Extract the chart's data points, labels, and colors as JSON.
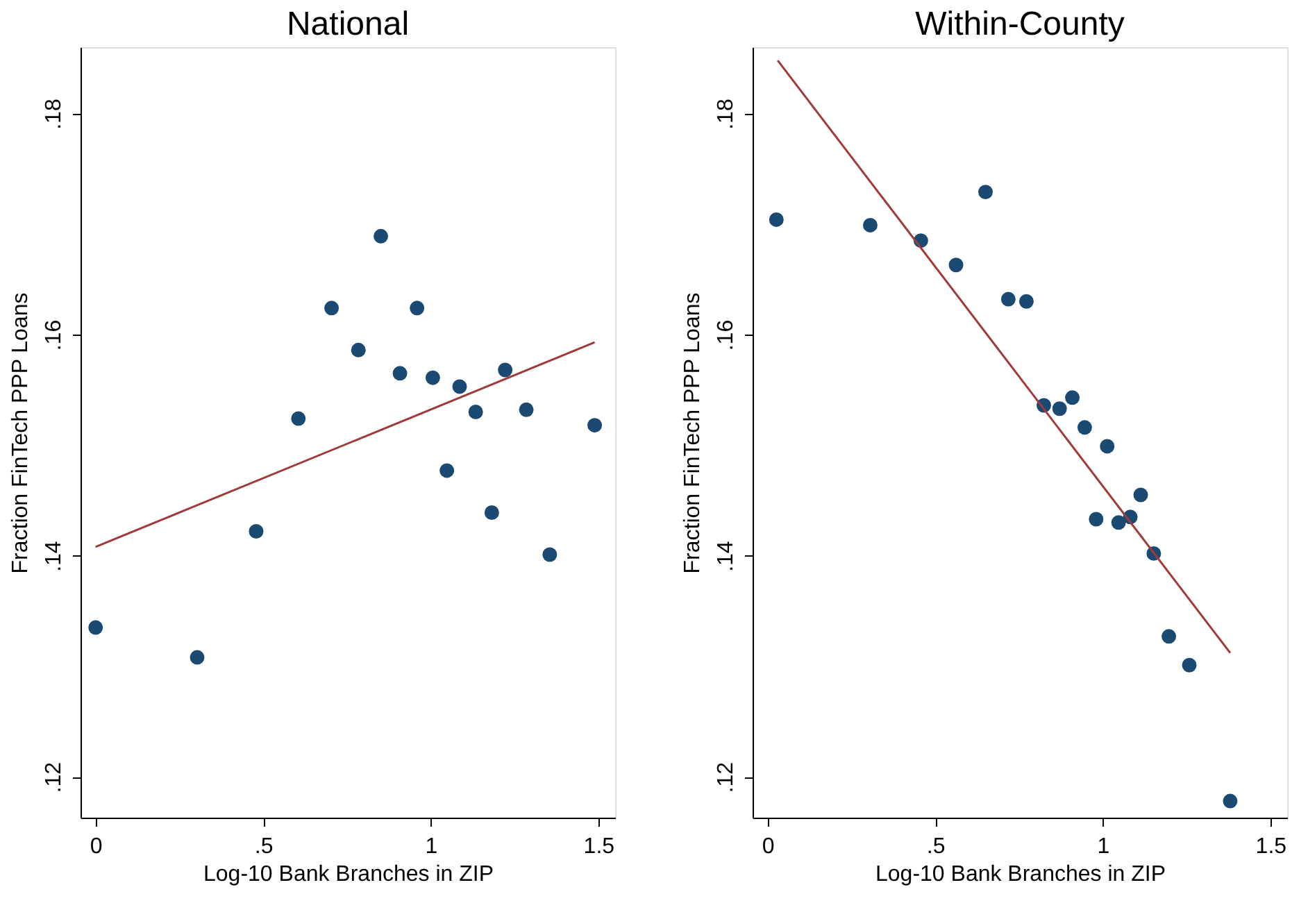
{
  "chart_data": [
    {
      "type": "scatter",
      "title": "National",
      "xlabel": "Log-10 Bank Branches in ZIP",
      "ylabel": "Fraction FinTech PPP Loans",
      "xlim": [
        -0.045,
        1.55
      ],
      "xticks": [
        0,
        {
          "value": 0.5,
          "label": ".5"
        },
        1,
        1.5
      ],
      "ylim": [
        0.1163,
        0.186
      ],
      "yticks": [
        {
          "value": 0.12,
          "label": ".12"
        },
        {
          "value": 0.14,
          "label": ".14"
        },
        {
          "value": 0.16,
          "label": ".16"
        },
        {
          "value": 0.18,
          "label": ".18"
        }
      ],
      "grid": false,
      "series": [
        {
          "marker": "circle",
          "color": "#1a4a72",
          "x": [
            0.0,
            0.303,
            0.479,
            0.605,
            0.704,
            0.784,
            0.851,
            0.908,
            0.959,
            1.006,
            1.048,
            1.086,
            1.134,
            1.182,
            1.222,
            1.285,
            1.355,
            1.489
          ],
          "values": [
            0.1335,
            0.1308,
            0.1422,
            0.1524,
            0.1624,
            0.1586,
            0.1689,
            0.1565,
            0.1624,
            0.1561,
            0.1477,
            0.1553,
            0.153,
            0.1439,
            0.1568,
            0.1532,
            0.1401,
            0.1518
          ]
        },
        {
          "type": "line",
          "color": "#a03a3a",
          "x": [
            0.0,
            1.489
          ],
          "values": [
            0.1408,
            0.1593
          ]
        }
      ]
    },
    {
      "type": "scatter",
      "title": "Within-County",
      "xlabel": "Log-10 Bank Branches in ZIP",
      "ylabel": "Fraction FinTech PPP Loans",
      "xlim": [
        -0.045,
        1.55
      ],
      "xticks": [
        0,
        {
          "value": 0.5,
          "label": ".5"
        },
        1,
        1.5
      ],
      "ylim": [
        0.1163,
        0.186
      ],
      "yticks": [
        {
          "value": 0.12,
          "label": ".12"
        },
        {
          "value": 0.14,
          "label": ".14"
        },
        {
          "value": 0.16,
          "label": ".16"
        },
        {
          "value": 0.18,
          "label": ".18"
        }
      ],
      "grid": false,
      "series": [
        {
          "marker": "circle",
          "color": "#1a4a72",
          "x": [
            0.026,
            0.306,
            0.457,
            0.562,
            0.65,
            0.718,
            0.772,
            0.824,
            0.871,
            0.909,
            0.946,
            1.013,
            0.98,
            1.047,
            1.082,
            1.113,
            1.152,
            1.197,
            1.258,
            1.38
          ],
          "values": [
            0.1704,
            0.1699,
            0.1685,
            0.1663,
            0.1729,
            0.1632,
            0.163,
            0.1536,
            0.1533,
            0.1543,
            0.1516,
            0.1499,
            0.1433,
            0.143,
            0.1435,
            0.1455,
            0.1402,
            0.1327,
            0.1301,
            0.1178
          ]
        },
        {
          "type": "line",
          "color": "#a03a3a",
          "x": [
            0.03,
            1.38
          ],
          "values": [
            0.1848,
            0.1312
          ]
        }
      ]
    }
  ]
}
